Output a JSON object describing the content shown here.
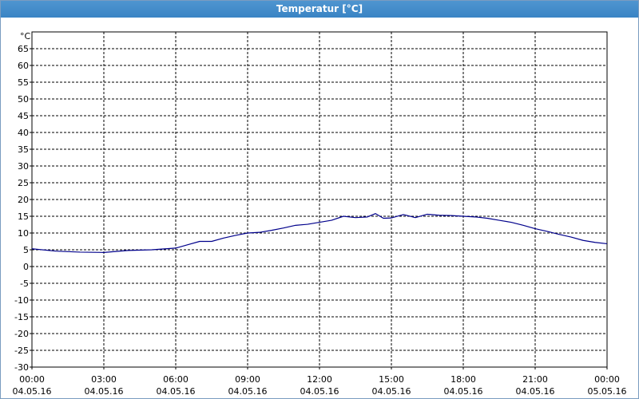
{
  "window": {
    "title": "Temperatur [°C]"
  },
  "chart_data": {
    "type": "line",
    "title": "Temperatur [°C]",
    "ylabel": "°C",
    "xlabel": "",
    "ylim": [
      -30,
      70
    ],
    "yticks": [
      65,
      60,
      55,
      50,
      45,
      40,
      35,
      30,
      25,
      20,
      15,
      10,
      5,
      0,
      -5,
      -10,
      -15,
      -20,
      -25,
      -30
    ],
    "xticks": [
      {
        "time": "00:00",
        "date": "04.05.16"
      },
      {
        "time": "03:00",
        "date": "04.05.16"
      },
      {
        "time": "06:00",
        "date": "04.05.16"
      },
      {
        "time": "09:00",
        "date": "04.05.16"
      },
      {
        "time": "12:00",
        "date": "04.05.16"
      },
      {
        "time": "15:00",
        "date": "04.05.16"
      },
      {
        "time": "18:00",
        "date": "04.05.16"
      },
      {
        "time": "21:00",
        "date": "04.05.16"
      },
      {
        "time": "00:00",
        "date": "05.05.16"
      }
    ],
    "grid": true,
    "series": [
      {
        "color": "#00008b",
        "x": [
          "04.05.16 00:00",
          "04.05.16 01:00",
          "04.05.16 02:00",
          "04.05.16 03:00",
          "04.05.16 04:00",
          "04.05.16 05:00",
          "04.05.16 06:00",
          "04.05.16 06:30",
          "04.05.16 07:00",
          "04.05.16 07:30",
          "04.05.16 08:00",
          "04.05.16 08:30",
          "04.05.16 09:00",
          "04.05.16 09:30",
          "04.05.16 10:00",
          "04.05.16 10:30",
          "04.05.16 11:00",
          "04.05.16 11:30",
          "04.05.16 12:00",
          "04.05.16 12:30",
          "04.05.16 13:00",
          "04.05.16 13:30",
          "04.05.16 14:00",
          "04.05.16 14:20",
          "04.05.16 14:40",
          "04.05.16 15:00",
          "04.05.16 15:30",
          "04.05.16 16:00",
          "04.05.16 16:30",
          "04.05.16 17:00",
          "04.05.16 17:30",
          "04.05.16 18:00",
          "04.05.16 18:30",
          "04.05.16 19:00",
          "04.05.16 19:30",
          "04.05.16 20:00",
          "04.05.16 20:30",
          "04.05.16 21:00",
          "04.05.16 21:30",
          "04.05.16 22:00",
          "04.05.16 22:30",
          "04.05.16 23:00",
          "04.05.16 23:30",
          "05.05.16 00:00"
        ],
        "y": [
          5.3,
          4.6,
          4.3,
          4.2,
          4.8,
          5.0,
          5.5,
          6.5,
          7.5,
          7.5,
          8.5,
          9.3,
          10.0,
          10.2,
          10.8,
          11.5,
          12.3,
          12.6,
          13.2,
          13.8,
          15.0,
          14.6,
          14.8,
          15.8,
          14.4,
          14.5,
          15.5,
          14.6,
          15.6,
          15.3,
          15.2,
          15.0,
          14.8,
          14.4,
          13.8,
          13.2,
          12.3,
          11.3,
          10.5,
          9.6,
          8.8,
          7.8,
          7.2,
          6.8
        ]
      }
    ]
  }
}
